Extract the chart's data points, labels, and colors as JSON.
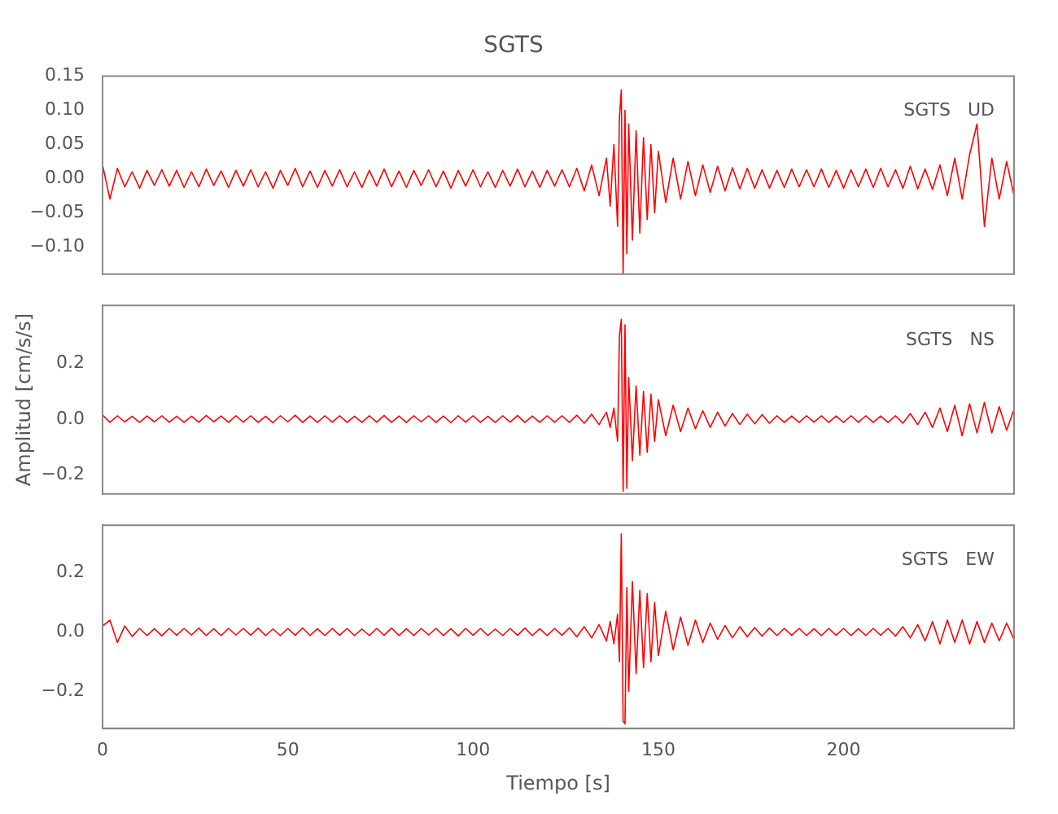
{
  "chart_data": [
    {
      "type": "line",
      "title": "SGTS",
      "annotations": [
        "SGTS   UD"
      ],
      "tick_labels": "y",
      "xlim": [
        0,
        246
      ],
      "xticks": [
        0,
        50,
        100,
        150,
        200
      ],
      "ylim": [
        -0.14,
        0.15
      ],
      "yticks": [
        {
          "value": -0.1,
          "label": "−0.10"
        },
        {
          "value": -0.05,
          "label": "−0.05"
        },
        {
          "value": 0,
          "label": "0.00"
        },
        {
          "value": 0.05,
          "label": "0.05"
        },
        {
          "value": 0.1,
          "label": "0.10"
        },
        {
          "value": 0.15,
          "label": "0.15"
        }
      ],
      "x": [
        0,
        2,
        4,
        6,
        8,
        10,
        12,
        14,
        16,
        18,
        20,
        22,
        24,
        26,
        28,
        30,
        32,
        34,
        36,
        38,
        40,
        42,
        44,
        46,
        48,
        50,
        52,
        54,
        56,
        58,
        60,
        62,
        64,
        66,
        68,
        70,
        72,
        74,
        76,
        78,
        80,
        82,
        84,
        86,
        88,
        90,
        92,
        94,
        96,
        98,
        100,
        102,
        104,
        106,
        108,
        110,
        112,
        114,
        116,
        118,
        120,
        122,
        124,
        126,
        128,
        130,
        132,
        134,
        136,
        137,
        138,
        139,
        139.5,
        140,
        140.5,
        141,
        141.5,
        142,
        143,
        144,
        145,
        146,
        147,
        148,
        149,
        150,
        152,
        154,
        156,
        158,
        160,
        162,
        164,
        166,
        168,
        170,
        172,
        174,
        176,
        178,
        180,
        182,
        184,
        186,
        188,
        190,
        192,
        194,
        196,
        198,
        200,
        202,
        204,
        206,
        208,
        210,
        212,
        214,
        216,
        218,
        220,
        222,
        224,
        226,
        228,
        230,
        232,
        234,
        236,
        238,
        240,
        242,
        244,
        246
      ],
      "series": [
        {
          "color": "#ff0000",
          "values": [
            0.02,
            -0.03,
            0.015,
            -0.012,
            0.01,
            -0.014,
            0.012,
            -0.01,
            0.013,
            -0.011,
            0.012,
            -0.013,
            0.01,
            -0.012,
            0.014,
            -0.01,
            0.011,
            -0.013,
            0.012,
            -0.011,
            0.013,
            -0.012,
            0.01,
            -0.014,
            0.012,
            -0.01,
            0.015,
            -0.012,
            0.011,
            -0.013,
            0.012,
            -0.011,
            0.013,
            -0.012,
            0.01,
            -0.013,
            0.012,
            -0.011,
            0.014,
            -0.012,
            0.011,
            -0.013,
            0.012,
            -0.01,
            0.013,
            -0.012,
            0.011,
            -0.014,
            0.012,
            -0.011,
            0.013,
            -0.012,
            0.01,
            -0.013,
            0.012,
            -0.011,
            0.014,
            -0.012,
            0.011,
            -0.013,
            0.012,
            -0.011,
            0.013,
            -0.012,
            0.015,
            -0.018,
            0.02,
            -0.025,
            0.03,
            -0.04,
            0.05,
            -0.07,
            0.09,
            0.13,
            -0.14,
            0.1,
            -0.11,
            0.08,
            -0.09,
            0.07,
            -0.08,
            0.06,
            -0.06,
            0.05,
            -0.05,
            0.04,
            -0.035,
            0.03,
            -0.03,
            0.025,
            -0.025,
            0.02,
            -0.02,
            0.018,
            -0.018,
            0.016,
            -0.015,
            0.015,
            -0.014,
            0.013,
            -0.014,
            0.012,
            -0.013,
            0.014,
            -0.012,
            0.013,
            -0.012,
            0.014,
            -0.013,
            0.012,
            -0.014,
            0.013,
            -0.012,
            0.014,
            -0.013,
            0.015,
            -0.012,
            0.013,
            -0.014,
            0.018,
            -0.015,
            0.014,
            -0.016,
            0.02,
            -0.025,
            0.03,
            -0.03,
            0.035,
            0.08,
            -0.07,
            0.03,
            -0.03,
            0.025,
            -0.025
          ]
        }
      ]
    },
    {
      "type": "line",
      "ylabel": "Amplitud [cm/s/s]",
      "annotations": [
        "SGTS   NS"
      ],
      "tick_labels": "y",
      "xlim": [
        0,
        246
      ],
      "xticks": [
        0,
        50,
        100,
        150,
        200
      ],
      "ylim": [
        -0.27,
        0.41
      ],
      "yticks": [
        {
          "value": -0.2,
          "label": "−0.2"
        },
        {
          "value": 0,
          "label": "0.0"
        },
        {
          "value": 0.2,
          "label": "0.2"
        }
      ],
      "x": [
        0,
        2,
        4,
        6,
        8,
        10,
        12,
        14,
        16,
        18,
        20,
        22,
        24,
        26,
        28,
        30,
        32,
        34,
        36,
        38,
        40,
        42,
        44,
        46,
        48,
        50,
        52,
        54,
        56,
        58,
        60,
        62,
        64,
        66,
        68,
        70,
        72,
        74,
        76,
        78,
        80,
        82,
        84,
        86,
        88,
        90,
        92,
        94,
        96,
        98,
        100,
        102,
        104,
        106,
        108,
        110,
        112,
        114,
        116,
        118,
        120,
        122,
        124,
        126,
        128,
        130,
        132,
        134,
        136,
        137,
        138,
        139,
        139.5,
        140,
        140.5,
        141,
        141.5,
        142,
        143,
        144,
        145,
        146,
        147,
        148,
        149,
        150,
        152,
        154,
        156,
        158,
        160,
        162,
        164,
        166,
        168,
        170,
        172,
        174,
        176,
        178,
        180,
        182,
        184,
        186,
        188,
        190,
        192,
        194,
        196,
        198,
        200,
        202,
        204,
        206,
        208,
        210,
        212,
        214,
        216,
        218,
        220,
        222,
        224,
        226,
        228,
        230,
        232,
        234,
        236,
        238,
        240,
        242,
        244,
        246
      ],
      "series": [
        {
          "color": "#ff0000",
          "values": [
            0.015,
            -0.012,
            0.012,
            -0.01,
            0.01,
            -0.012,
            0.011,
            -0.01,
            0.012,
            -0.011,
            0.01,
            -0.012,
            0.01,
            -0.011,
            0.013,
            -0.01,
            0.011,
            -0.012,
            0.012,
            -0.011,
            0.012,
            -0.012,
            0.01,
            -0.013,
            0.012,
            -0.01,
            0.014,
            -0.012,
            0.011,
            -0.012,
            0.012,
            -0.011,
            0.012,
            -0.012,
            0.01,
            -0.012,
            0.012,
            -0.011,
            0.013,
            -0.012,
            0.011,
            -0.012,
            0.012,
            -0.01,
            0.012,
            -0.012,
            0.011,
            -0.013,
            0.012,
            -0.011,
            0.012,
            -0.012,
            0.01,
            -0.012,
            0.012,
            -0.011,
            0.013,
            -0.012,
            0.011,
            -0.012,
            0.012,
            -0.011,
            0.012,
            -0.012,
            0.014,
            -0.015,
            0.018,
            -0.02,
            0.025,
            -0.03,
            0.04,
            -0.08,
            0.3,
            0.36,
            -0.26,
            0.34,
            -0.25,
            0.15,
            -0.15,
            0.12,
            -0.13,
            0.1,
            -0.12,
            0.09,
            -0.08,
            0.07,
            -0.06,
            0.05,
            -0.045,
            0.04,
            -0.035,
            0.03,
            -0.03,
            0.025,
            -0.025,
            0.02,
            -0.02,
            0.018,
            -0.017,
            0.016,
            -0.015,
            0.012,
            -0.012,
            0.011,
            -0.012,
            0.012,
            -0.011,
            0.012,
            -0.012,
            0.011,
            -0.012,
            0.012,
            -0.011,
            0.012,
            -0.012,
            0.011,
            -0.012,
            0.012,
            -0.015,
            0.02,
            -0.02,
            0.025,
            -0.03,
            0.04,
            -0.045,
            0.05,
            -0.06,
            0.055,
            -0.05,
            0.06,
            -0.05,
            0.045,
            -0.04,
            0.035
          ]
        }
      ]
    },
    {
      "type": "line",
      "xlabel": "Tiempo [s]",
      "annotations": [
        "SGTS   EW"
      ],
      "xlim": [
        0,
        246
      ],
      "xticks": [
        0,
        50,
        100,
        150,
        200
      ],
      "ylim": [
        -0.325,
        0.36
      ],
      "yticks": [
        {
          "value": -0.2,
          "label": "−0.2"
        },
        {
          "value": 0,
          "label": "0.0"
        },
        {
          "value": 0.2,
          "label": "0.2"
        }
      ],
      "x": [
        0,
        2,
        4,
        6,
        8,
        10,
        12,
        14,
        16,
        18,
        20,
        22,
        24,
        26,
        28,
        30,
        32,
        34,
        36,
        38,
        40,
        42,
        44,
        46,
        48,
        50,
        52,
        54,
        56,
        58,
        60,
        62,
        64,
        66,
        68,
        70,
        72,
        74,
        76,
        78,
        80,
        82,
        84,
        86,
        88,
        90,
        92,
        94,
        96,
        98,
        100,
        102,
        104,
        106,
        108,
        110,
        112,
        114,
        116,
        118,
        120,
        122,
        124,
        126,
        128,
        130,
        132,
        134,
        136,
        137,
        138,
        139,
        139.5,
        140,
        140.5,
        141,
        141.5,
        142,
        143,
        144,
        145,
        146,
        147,
        148,
        149,
        150,
        152,
        154,
        156,
        158,
        160,
        162,
        164,
        166,
        168,
        170,
        172,
        174,
        176,
        178,
        180,
        182,
        184,
        186,
        188,
        190,
        192,
        194,
        196,
        198,
        200,
        202,
        204,
        206,
        208,
        210,
        212,
        214,
        216,
        218,
        220,
        222,
        224,
        226,
        228,
        230,
        232,
        234,
        236,
        238,
        240,
        242,
        244,
        246
      ],
      "series": [
        {
          "color": "#ff0000",
          "values": [
            0.02,
            0.04,
            -0.035,
            0.02,
            -0.015,
            0.012,
            -0.012,
            0.011,
            -0.013,
            0.012,
            -0.011,
            0.012,
            -0.01,
            0.013,
            -0.012,
            0.011,
            -0.012,
            0.012,
            -0.01,
            0.012,
            -0.011,
            0.013,
            -0.012,
            0.01,
            -0.012,
            0.012,
            -0.011,
            0.014,
            -0.012,
            0.011,
            -0.012,
            0.012,
            -0.011,
            0.012,
            -0.012,
            0.01,
            -0.012,
            0.012,
            -0.011,
            0.013,
            -0.012,
            0.011,
            -0.012,
            0.012,
            -0.01,
            0.012,
            -0.012,
            0.011,
            -0.013,
            0.012,
            -0.011,
            0.012,
            -0.012,
            0.01,
            -0.012,
            0.012,
            -0.011,
            0.013,
            -0.012,
            0.011,
            -0.012,
            0.012,
            -0.011,
            0.014,
            -0.016,
            0.018,
            -0.02,
            0.025,
            -0.03,
            0.035,
            -0.04,
            0.06,
            -0.1,
            0.33,
            -0.3,
            -0.31,
            0.15,
            -0.2,
            0.17,
            -0.14,
            0.14,
            -0.12,
            0.13,
            -0.1,
            0.1,
            -0.08,
            0.07,
            -0.06,
            0.05,
            -0.045,
            0.04,
            -0.035,
            0.03,
            -0.025,
            0.022,
            -0.02,
            0.018,
            -0.016,
            0.015,
            -0.014,
            0.013,
            -0.012,
            0.012,
            -0.011,
            0.012,
            -0.012,
            0.011,
            -0.012,
            0.012,
            -0.011,
            0.012,
            -0.012,
            0.011,
            -0.012,
            0.012,
            -0.011,
            0.012,
            -0.014,
            0.018,
            -0.02,
            0.025,
            -0.03,
            0.035,
            -0.04,
            0.04,
            -0.035,
            0.04,
            -0.04,
            0.035,
            -0.035,
            0.03,
            -0.03,
            0.03,
            -0.025
          ]
        }
      ]
    }
  ]
}
